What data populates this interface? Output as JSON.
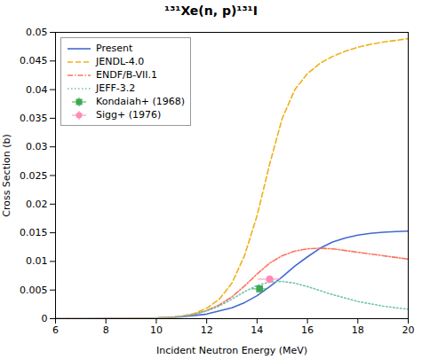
{
  "chart_data": {
    "type": "line",
    "title": "¹³¹Xe(n, p)¹³¹I",
    "xlabel": "Incident Neutron Energy (MeV)",
    "ylabel": "Cross Section (b)",
    "xlim": [
      6,
      20
    ],
    "ylim": [
      0,
      0.05
    ],
    "xticks": [
      6,
      8,
      10,
      12,
      14,
      16,
      18,
      20
    ],
    "yticks": [
      0,
      0.005,
      0.01,
      0.015,
      0.02,
      0.025,
      0.03,
      0.035,
      0.04,
      0.045,
      0.05
    ],
    "grid": false,
    "legend": "upper left",
    "series": [
      {
        "name": "Present",
        "type": "line",
        "line_style": "solid",
        "x": [
          6.0,
          7.0,
          8.0,
          9.0,
          10.0,
          11.0,
          12.0,
          13.0,
          13.5,
          14.0,
          14.5,
          15.0,
          15.5,
          16.0,
          16.5,
          17.0,
          17.5,
          18.0,
          18.5,
          19.0,
          19.5,
          20.0
        ],
        "values": [
          0.0,
          0.0,
          2e-05,
          5e-05,
          0.00012,
          0.0003,
          0.0008,
          0.0019,
          0.0028,
          0.004,
          0.0056,
          0.0073,
          0.0092,
          0.0108,
          0.0123,
          0.0134,
          0.0141,
          0.0146,
          0.0149,
          0.0151,
          0.0152,
          0.0153
        ]
      },
      {
        "name": "JENDL-4.0",
        "type": "line",
        "line_style": "dashed",
        "x": [
          6.0,
          7.0,
          8.0,
          9.0,
          9.5,
          10.0,
          10.5,
          11.0,
          11.5,
          12.0,
          12.5,
          13.0,
          13.5,
          14.0,
          14.5,
          15.0,
          15.5,
          16.0,
          16.5,
          17.0,
          17.5,
          18.0,
          18.5,
          19.0,
          19.5,
          20.0
        ],
        "values": [
          0.0,
          0.0,
          1e-05,
          3e-05,
          6e-05,
          0.00012,
          0.00022,
          0.00045,
          0.0009,
          0.0018,
          0.0034,
          0.0062,
          0.011,
          0.018,
          0.027,
          0.035,
          0.04,
          0.0428,
          0.0446,
          0.0458,
          0.0467,
          0.0474,
          0.0479,
          0.0483,
          0.0486,
          0.0489
        ]
      },
      {
        "name": "ENDF/B-VII.1",
        "type": "line",
        "line_style": "dashdot",
        "x": [
          6.0,
          7.0,
          8.0,
          9.0,
          9.5,
          10.0,
          10.5,
          11.0,
          11.5,
          12.0,
          12.5,
          13.0,
          13.5,
          14.0,
          14.5,
          15.0,
          15.5,
          16.0,
          16.5,
          17.0,
          17.5,
          18.0,
          18.5,
          19.0,
          19.5,
          20.0
        ],
        "values": [
          0.0,
          0.0,
          1e-05,
          3e-05,
          6e-05,
          0.00012,
          0.00022,
          0.0004,
          0.00075,
          0.0014,
          0.0024,
          0.0038,
          0.0057,
          0.0078,
          0.0097,
          0.011,
          0.0118,
          0.0122,
          0.0123,
          0.0122,
          0.0119,
          0.0116,
          0.0113,
          0.011,
          0.0107,
          0.0104
        ]
      },
      {
        "name": "JEFF-3.2",
        "type": "line",
        "line_style": "dotted",
        "x": [
          6.0,
          7.0,
          8.0,
          9.0,
          9.5,
          10.0,
          10.5,
          11.0,
          11.5,
          12.0,
          12.5,
          13.0,
          13.5,
          14.0,
          14.5,
          15.0,
          15.5,
          16.0,
          16.5,
          17.0,
          17.5,
          18.0,
          18.5,
          19.0,
          19.5,
          20.0
        ],
        "values": [
          0.0,
          0.0,
          1e-05,
          3e-05,
          6e-05,
          0.00012,
          0.00022,
          0.0004,
          0.00075,
          0.00135,
          0.0022,
          0.0034,
          0.0047,
          0.0058,
          0.0064,
          0.0065,
          0.0062,
          0.0056,
          0.0049,
          0.0042,
          0.0036,
          0.003,
          0.0026,
          0.0022,
          0.0019,
          0.00165
        ]
      },
      {
        "name": "Kondaiah+ (1968)",
        "type": "scatter",
        "marker": "square",
        "x": [
          14.1
        ],
        "values": [
          0.0052
        ],
        "xerr": [
          0.3
        ],
        "yerr": [
          0.0005
        ]
      },
      {
        "name": "Sigg+ (1976)",
        "type": "scatter",
        "marker": "circle",
        "x": [
          14.5
        ],
        "values": [
          0.0069
        ],
        "xerr": [
          0.45
        ],
        "yerr": [
          0.0004
        ]
      }
    ]
  }
}
